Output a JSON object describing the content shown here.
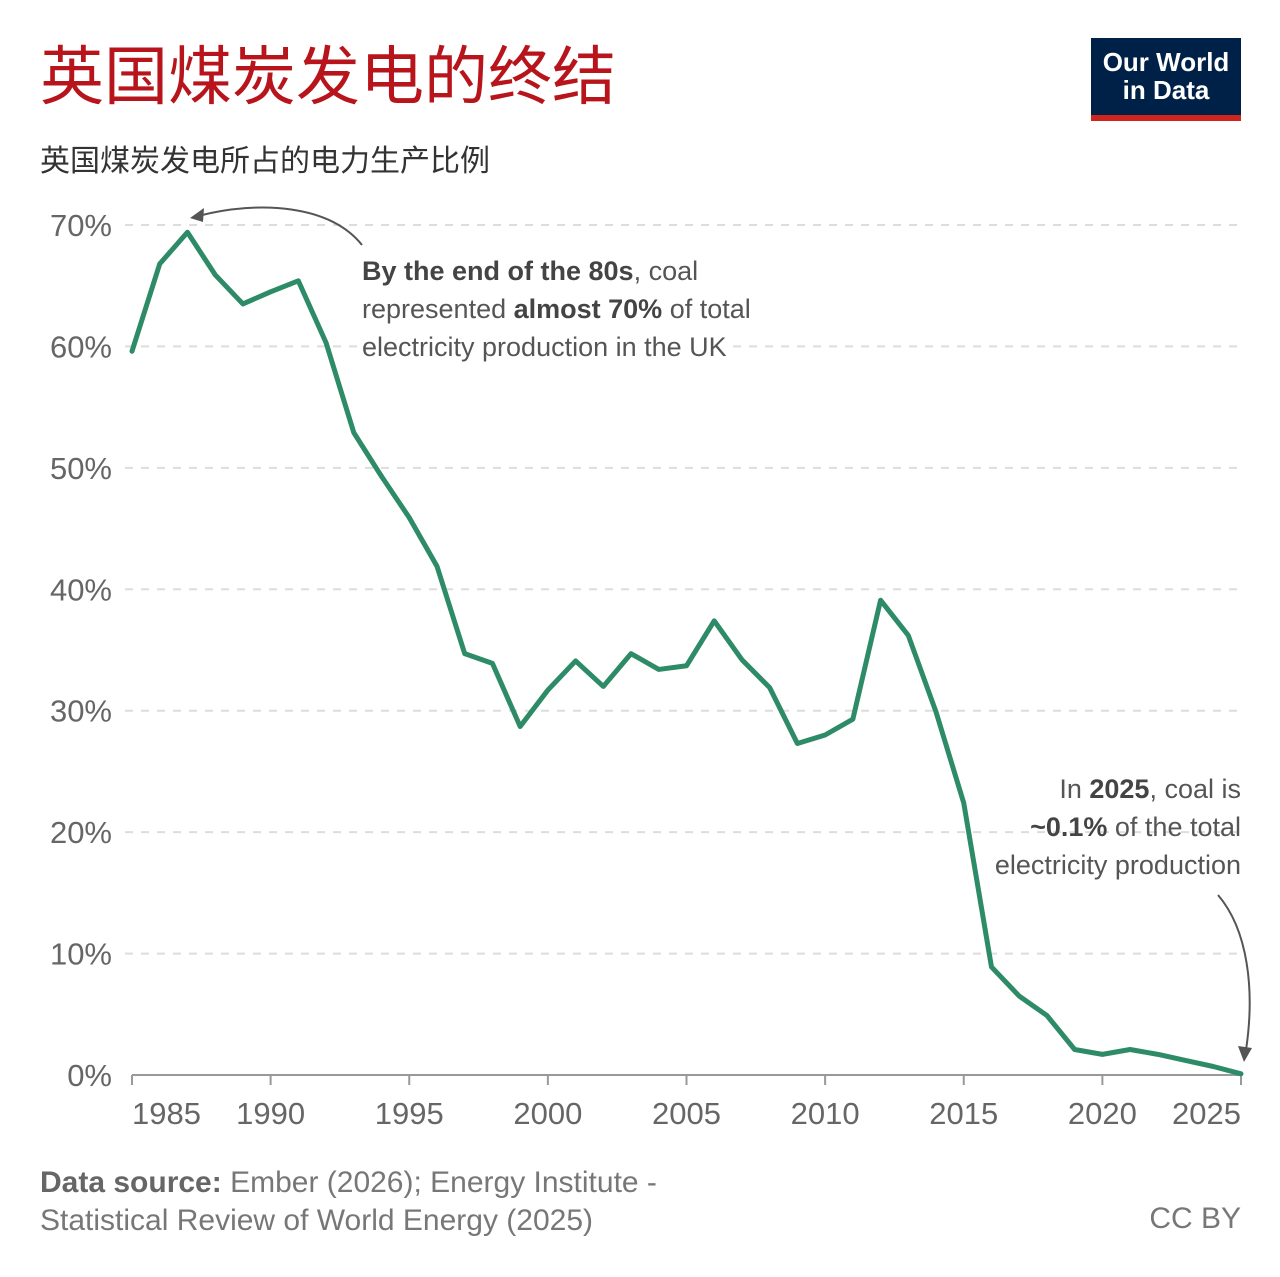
{
  "header": {
    "title": "英国煤炭发电的终结",
    "subtitle": "英国煤炭发电所占的电力生产比例",
    "logo_line1": "Our World",
    "logo_line2": "in Data"
  },
  "annotations": {
    "peak": {
      "bold1": "By the end of the 80s",
      "text1": ", coal",
      "text2a": "represented ",
      "bold2": "almost 70%",
      "text2b": " of total",
      "text3": "electricity production in the UK"
    },
    "end": {
      "text1a": "In ",
      "bold1": "2025",
      "text1b": ", coal is",
      "bold2": "~0.1%",
      "text2": " of the total",
      "text3": "electricity production"
    }
  },
  "footer": {
    "source_label": "Data source:",
    "source_text1": " Ember (2026); Energy Institute -",
    "source_text2": "Statistical Review of World Energy (2025)",
    "license": "CC BY"
  },
  "chart_data": {
    "type": "line",
    "title": "英国煤炭发电的终结",
    "subtitle": "英国煤炭发电所占的电力生产比例",
    "xlim": [
      1985,
      2025
    ],
    "ylim": [
      0,
      70
    ],
    "x_ticks": [
      1985,
      1990,
      1995,
      2000,
      2005,
      2010,
      2015,
      2020,
      2025
    ],
    "y_ticks": [
      "0%",
      "10%",
      "20%",
      "30%",
      "40%",
      "50%",
      "60%",
      "70%"
    ],
    "grid": "horizontal-dashed",
    "line_color": "#2e8b67",
    "x": [
      1985,
      1986,
      1987,
      1988,
      1989,
      1990,
      1991,
      1992,
      1993,
      1994,
      1995,
      1996,
      1997,
      1998,
      1999,
      2000,
      2001,
      2002,
      2003,
      2004,
      2005,
      2006,
      2007,
      2008,
      2009,
      2010,
      2011,
      2012,
      2013,
      2014,
      2015,
      2016,
      2017,
      2018,
      2019,
      2020,
      2021,
      2022,
      2023,
      2024,
      2025
    ],
    "values": [
      59.6,
      66.8,
      69.4,
      65.9,
      63.5,
      64.5,
      65.4,
      60.3,
      52.9,
      49.3,
      45.9,
      41.9,
      34.7,
      33.9,
      28.7,
      31.7,
      34.1,
      32.0,
      34.7,
      33.4,
      33.7,
      37.4,
      34.2,
      31.9,
      27.3,
      28.0,
      29.3,
      39.1,
      36.2,
      29.9,
      22.4,
      8.9,
      6.5,
      4.9,
      2.1,
      1.7,
      2.1,
      1.7,
      1.2,
      0.7,
      0.1
    ]
  }
}
